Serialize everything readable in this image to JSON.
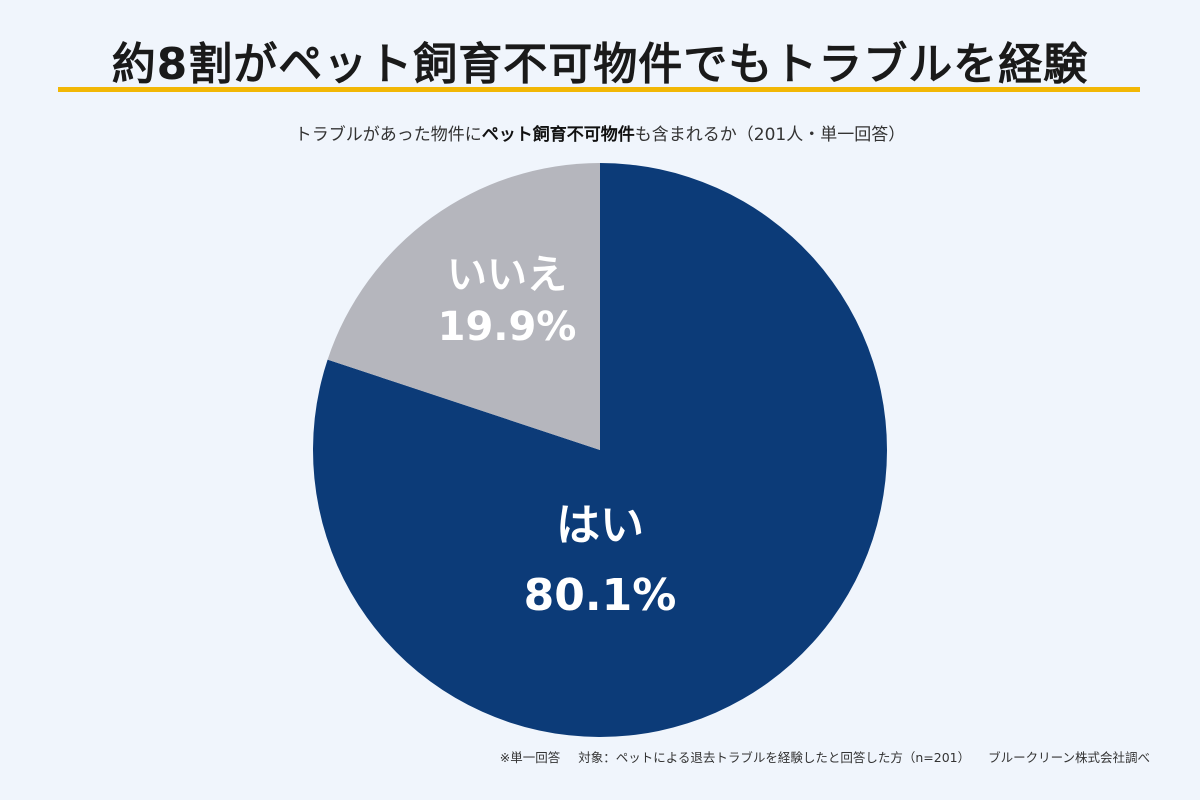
{
  "header": {
    "title": "約8割がペット飼育不可物件でもトラブルを経験",
    "subtitle_pre": "トラブルがあった物件に",
    "subtitle_bold": "ペット飼育不可物件",
    "subtitle_post": "も含まれるか（201人・単一回答）"
  },
  "chart_data": {
    "type": "pie",
    "title": "約8割がペット飼育不可物件でもトラブルを経験",
    "slices": [
      {
        "label": "はい",
        "value": 80.1,
        "value_label": "80.1%",
        "color": "#0c3b78",
        "text_color": "#ffffff"
      },
      {
        "label": "いいえ",
        "value": 19.9,
        "value_label": "19.9%",
        "color": "#b5b6bd",
        "text_color": "#ffffff"
      }
    ]
  },
  "footer": {
    "note": "※単一回答",
    "target": "対象：ペットによる退去トラブルを経験したと回答した方（n=201）",
    "source": "ブルークリーン株式会社調べ"
  }
}
